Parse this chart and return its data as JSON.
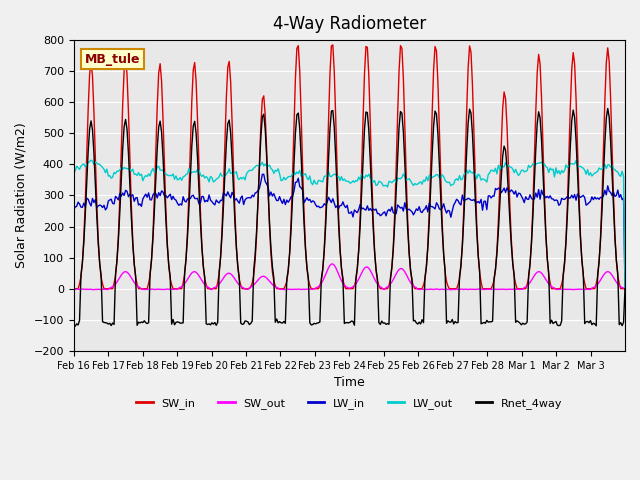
{
  "title": "4-Way Radiometer",
  "xlabel": "Time",
  "ylabel": "Solar Radiation (W/m2)",
  "ylim": [
    -200,
    800
  ],
  "yticks": [
    -200,
    -100,
    0,
    100,
    200,
    300,
    400,
    500,
    600,
    700,
    800
  ],
  "x_tick_labels": [
    "Feb 16",
    "Feb 17",
    "Feb 18",
    "Feb 19",
    "Feb 20",
    "Feb 21",
    "Feb 22",
    "Feb 23",
    "Feb 24",
    "Feb 25",
    "Feb 26",
    "Feb 27",
    "Feb 28",
    "Mar 1",
    "Mar 2",
    "Mar 3"
  ],
  "station_label": "MB_tule",
  "background_color": "#e8e8e8",
  "plot_bg_color": "#e8e8e8",
  "colors": {
    "SW_in": "#dd0000",
    "SW_out": "#ff00ff",
    "LW_in": "#0000cc",
    "LW_out": "#00cccc",
    "Rnet_4way": "#000000"
  },
  "legend_entries": [
    "SW_in",
    "SW_out",
    "LW_in",
    "LW_out",
    "Rnet_4way"
  ]
}
